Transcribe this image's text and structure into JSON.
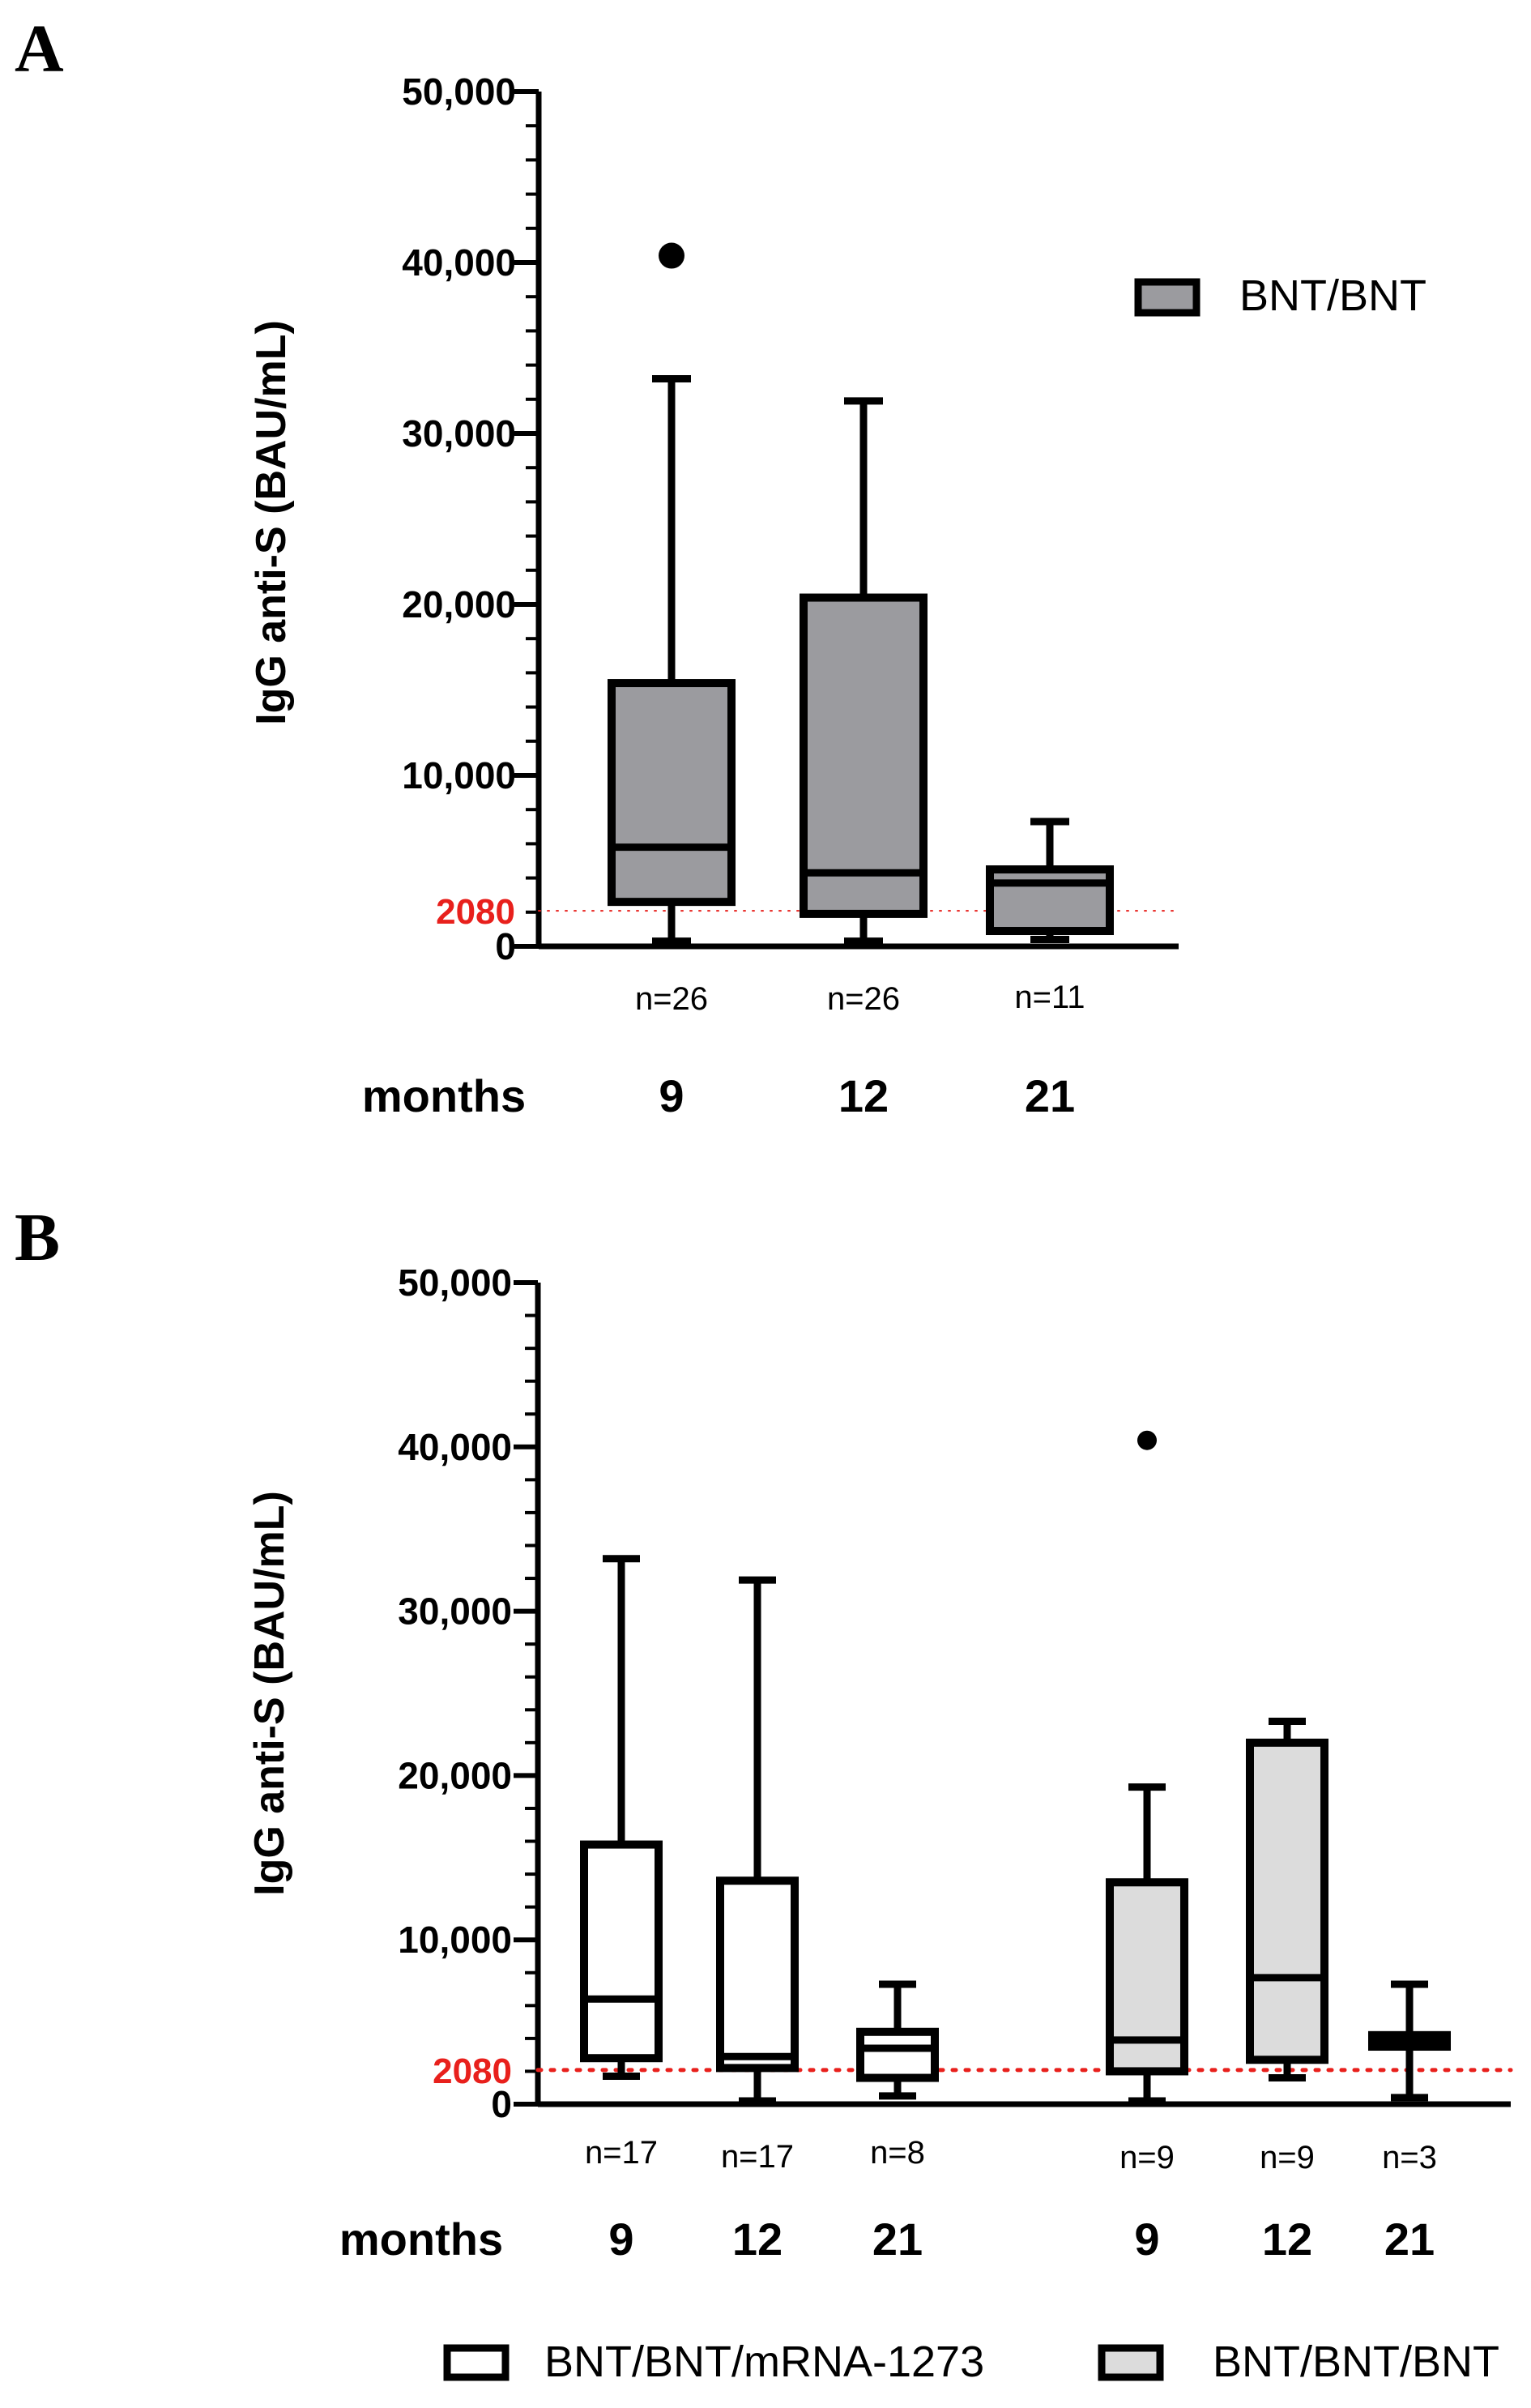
{
  "ref_color": "#e8201c",
  "chart_data": [
    {
      "panel": "A",
      "type": "box",
      "ylabel": "IgG anti-S (BAU/mL)",
      "ylim": [
        0,
        50000
      ],
      "major_ticks": [
        0,
        10000,
        20000,
        30000,
        40000,
        50000
      ],
      "tick_labels": [
        "0",
        "10,000",
        "20,000",
        "30,000",
        "40,000",
        "50,000"
      ],
      "reference_line": {
        "value": 2080,
        "label": "2080"
      },
      "row_label": "months",
      "legend": [
        {
          "name": "BNT/BNT",
          "fill": "#9b9b9f"
        }
      ],
      "groups": [
        {
          "series": "BNT/BNT",
          "month": "9",
          "n_label": "n=26",
          "fill": "#9b9b9f",
          "min": 300,
          "q1": 2600,
          "median": 5800,
          "q3": 15400,
          "max": 33200,
          "outliers": [
            40400
          ]
        },
        {
          "series": "BNT/BNT",
          "month": "12",
          "n_label": "n=26",
          "fill": "#9b9b9f",
          "min": 300,
          "q1": 1900,
          "median": 4300,
          "q3": 20400,
          "max": 31900,
          "outliers": []
        },
        {
          "series": "BNT/BNT",
          "month": "21",
          "n_label": "n=11",
          "fill": "#9b9b9f",
          "min": 400,
          "q1": 900,
          "median": 3700,
          "q3": 4500,
          "max": 7300,
          "outliers": []
        }
      ]
    },
    {
      "panel": "B",
      "type": "box",
      "ylabel": "IgG anti-S (BAU/mL)",
      "ylim": [
        0,
        50000
      ],
      "major_ticks": [
        0,
        10000,
        20000,
        30000,
        40000,
        50000
      ],
      "tick_labels": [
        "0",
        "10,000",
        "20,000",
        "30,000",
        "40,000",
        "50,000"
      ],
      "reference_line": {
        "value": 2080,
        "label": "2080"
      },
      "row_label": "months",
      "legend": [
        {
          "name": "BNT/BNT/mRNA-1273",
          "fill": "#ffffff"
        },
        {
          "name": "BNT/BNT/BNT",
          "fill": "#dcdcdc"
        }
      ],
      "groups": [
        {
          "series": "BNT/BNT/mRNA-1273",
          "month": "9",
          "n_label": "n=17",
          "fill": "#ffffff",
          "min": 1700,
          "q1": 2800,
          "median": 6400,
          "q3": 15800,
          "max": 33200,
          "outliers": []
        },
        {
          "series": "BNT/BNT/mRNA-1273",
          "month": "12",
          "n_label": "n=17",
          "fill": "#ffffff",
          "min": 200,
          "q1": 2200,
          "median": 2900,
          "q3": 13600,
          "max": 31900,
          "outliers": []
        },
        {
          "series": "BNT/BNT/mRNA-1273",
          "month": "21",
          "n_label": "n=8",
          "fill": "#ffffff",
          "min": 500,
          "q1": 1600,
          "median": 3400,
          "q3": 4400,
          "max": 7300,
          "outliers": []
        },
        {
          "series": "BNT/BNT/BNT",
          "month": "9",
          "n_label": "n=9",
          "fill": "#dcdcdc",
          "min": 200,
          "q1": 2000,
          "median": 3900,
          "q3": 13500,
          "max": 19300,
          "outliers": [
            40400
          ]
        },
        {
          "series": "BNT/BNT/BNT",
          "month": "12",
          "n_label": "n=9",
          "fill": "#dcdcdc",
          "min": 1600,
          "q1": 2700,
          "median": 7700,
          "q3": 22000,
          "max": 23300,
          "outliers": []
        },
        {
          "series": "BNT/BNT/BNT",
          "month": "21",
          "n_label": "n=3",
          "fill": "#dcdcdc",
          "min": 400,
          "q1": 3500,
          "median": 3800,
          "q3": 4200,
          "max": 7300,
          "outliers": []
        }
      ]
    }
  ]
}
